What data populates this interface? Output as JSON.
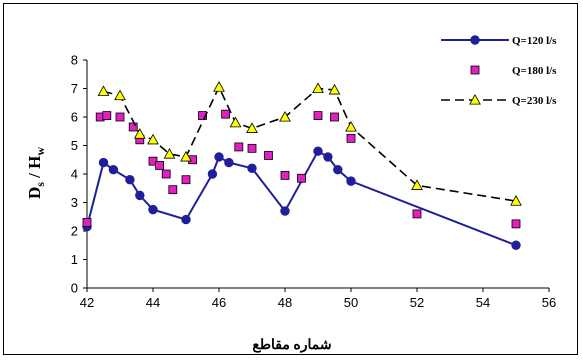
{
  "chart_data": {
    "type": "line",
    "xlabel": "شماره مقاطع",
    "ylabel_main": "D",
    "ylabel_sub1": "s",
    "ylabel_mid": " / H",
    "ylabel_sub2": "w",
    "xlim": [
      42,
      56
    ],
    "ylim": [
      0,
      8
    ],
    "xticks": [
      42,
      44,
      46,
      48,
      50,
      52,
      54,
      56
    ],
    "yticks": [
      0,
      1,
      2,
      3,
      4,
      5,
      6,
      7,
      8
    ],
    "grid": false,
    "legend_position": "top-right",
    "series": [
      {
        "name": "Q=120 l/s",
        "style": "solid-circle",
        "color": "#1f1f99",
        "marker_color": "#1f1f99",
        "points": [
          [
            42,
            2.15
          ],
          [
            42.5,
            4.4
          ],
          [
            42.8,
            4.15
          ],
          [
            43.3,
            3.8
          ],
          [
            43.6,
            3.25
          ],
          [
            44,
            2.75
          ],
          [
            45,
            2.4
          ],
          [
            45.8,
            4.0
          ],
          [
            46,
            4.6
          ],
          [
            46.3,
            4.4
          ],
          [
            47,
            4.2
          ],
          [
            48,
            2.7
          ],
          [
            49,
            4.8
          ],
          [
            49.3,
            4.6
          ],
          [
            49.6,
            4.15
          ],
          [
            50,
            3.75
          ],
          [
            55,
            1.5
          ]
        ]
      },
      {
        "name": "Q=180 l/s",
        "style": "square-only",
        "color": "#e020c0",
        "marker_color": "#e020c0",
        "points": [
          [
            42,
            2.3
          ],
          [
            42.4,
            6.0
          ],
          [
            42.6,
            6.05
          ],
          [
            43,
            6.0
          ],
          [
            43.4,
            5.65
          ],
          [
            43.6,
            5.2
          ],
          [
            44,
            4.45
          ],
          [
            44.2,
            4.3
          ],
          [
            44.4,
            4.0
          ],
          [
            44.6,
            3.45
          ],
          [
            45,
            3.8
          ],
          [
            45.2,
            4.5
          ],
          [
            45.5,
            6.05
          ],
          [
            46.2,
            6.1
          ],
          [
            46.6,
            4.95
          ],
          [
            47,
            4.9
          ],
          [
            47.5,
            4.65
          ],
          [
            48,
            3.95
          ],
          [
            48.5,
            3.85
          ],
          [
            49,
            6.05
          ],
          [
            49.5,
            6.0
          ],
          [
            50,
            5.25
          ],
          [
            52,
            2.6
          ],
          [
            55,
            2.25
          ]
        ]
      },
      {
        "name": "Q=230 l/s",
        "style": "dashed-triangle",
        "color": "#000000",
        "marker_color": "#ffff00",
        "points": [
          [
            42.5,
            6.9
          ],
          [
            43,
            6.75
          ],
          [
            43.6,
            5.4
          ],
          [
            44,
            5.2
          ],
          [
            44.5,
            4.7
          ],
          [
            45,
            4.6
          ],
          [
            46,
            7.05
          ],
          [
            46.5,
            5.8
          ],
          [
            47,
            5.6
          ],
          [
            48,
            6.0
          ],
          [
            49,
            7.0
          ],
          [
            49.5,
            6.95
          ],
          [
            50,
            5.65
          ],
          [
            52,
            3.6
          ],
          [
            55,
            3.05
          ]
        ]
      }
    ]
  }
}
